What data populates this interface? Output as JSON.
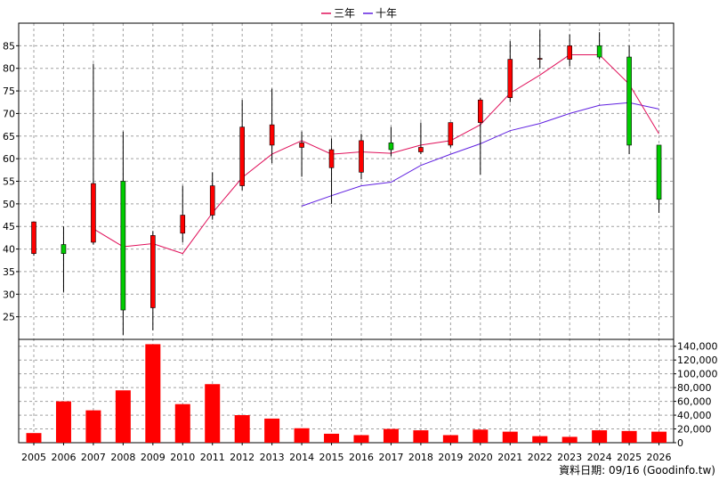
{
  "chart_data": {
    "type": "candlestick",
    "years": [
      "2005",
      "2006",
      "2007",
      "2008",
      "2009",
      "2010",
      "2011",
      "2012",
      "2013",
      "2014",
      "2015",
      "2016",
      "2017",
      "2018",
      "2019",
      "2020",
      "2021",
      "2022",
      "2023",
      "2024",
      "2025",
      "2026"
    ],
    "ohlc": [
      {
        "year": "2005",
        "open": 39,
        "high": 46,
        "low": 38.5,
        "close": 46
      },
      {
        "year": "2006",
        "open": 41,
        "high": 45,
        "low": 30.5,
        "close": 39
      },
      {
        "year": "2007",
        "open": 41.5,
        "high": 81,
        "low": 41,
        "close": 54.5
      },
      {
        "year": "2008",
        "open": 55,
        "high": 66,
        "low": 21,
        "close": 26.5
      },
      {
        "year": "2009",
        "open": 27,
        "high": 44,
        "low": 22,
        "close": 43
      },
      {
        "year": "2010",
        "open": 43.5,
        "high": 54,
        "low": 41.5,
        "close": 47.5
      },
      {
        "year": "2011",
        "open": 47.5,
        "high": 57,
        "low": 46.5,
        "close": 54
      },
      {
        "year": "2012",
        "open": 54,
        "high": 73,
        "low": 53,
        "close": 67
      },
      {
        "year": "2013",
        "open": 63,
        "high": 75.5,
        "low": 59,
        "close": 67.5
      },
      {
        "year": "2014",
        "open": 62.5,
        "high": 66,
        "low": 56,
        "close": 63.5
      },
      {
        "year": "2015",
        "open": 58,
        "high": 64.5,
        "low": 50,
        "close": 62
      },
      {
        "year": "2016",
        "open": 57,
        "high": 65.5,
        "low": 55.5,
        "close": 64
      },
      {
        "year": "2017",
        "open": 63.5,
        "high": 67,
        "low": 60.5,
        "close": 62
      },
      {
        "year": "2018",
        "open": 61.5,
        "high": 68,
        "low": 61,
        "close": 62.5
      },
      {
        "year": "2019",
        "open": 63,
        "high": 68,
        "low": 62.5,
        "close": 68
      },
      {
        "year": "2020",
        "open": 68,
        "high": 73.5,
        "low": 56.5,
        "close": 73
      },
      {
        "year": "2021",
        "open": 73.5,
        "high": 86,
        "low": 72.5,
        "close": 82
      },
      {
        "year": "2022",
        "open": 82,
        "high": 88.5,
        "low": 80,
        "close": 82.2
      },
      {
        "year": "2023",
        "open": 82,
        "high": 87.5,
        "low": 80.5,
        "close": 85
      },
      {
        "year": "2024",
        "open": 85,
        "high": 88,
        "low": 82,
        "close": 82.5
      },
      {
        "year": "2025",
        "open": 82.5,
        "high": 85,
        "low": 61,
        "close": 63
      },
      {
        "year": "2026",
        "open": 63,
        "high": 63,
        "low": 48,
        "close": 51
      }
    ],
    "ma3": [
      null,
      null,
      44.5,
      40.5,
      41.2,
      39,
      48,
      55.8,
      61,
      64,
      61,
      61.5,
      61.2,
      63,
      64,
      67.5,
      74.5,
      78.5,
      83,
      83,
      76.5,
      65.5
    ],
    "ma10": [
      null,
      null,
      null,
      null,
      null,
      null,
      null,
      null,
      null,
      49.5,
      51.8,
      54,
      54.8,
      58.5,
      61,
      63.3,
      66.2,
      67.8,
      70,
      71.8,
      72.4,
      71
    ],
    "volume": [
      14000,
      60000,
      47000,
      76000,
      143000,
      56000,
      85000,
      40000,
      35000,
      21000,
      13000,
      11000,
      20000,
      18000,
      11000,
      19000,
      16000,
      9500,
      8500,
      18000,
      17000,
      16000
    ],
    "price_ylim": [
      20,
      90
    ],
    "price_ticks": [
      "25",
      "30",
      "35",
      "40",
      "45",
      "50",
      "55",
      "60",
      "65",
      "70",
      "75",
      "80",
      "85"
    ],
    "volume_ylim": [
      0,
      150000
    ],
    "volume_ticks": [
      "0",
      "20,000",
      "40,000",
      "60,000",
      "80,000",
      "100,000",
      "120,000",
      "140,000"
    ],
    "legend": [
      {
        "label": "三年",
        "color": "#e0105a"
      },
      {
        "label": "十年",
        "color": "#6020e0"
      }
    ],
    "colors": {
      "up": "#ff0000",
      "down": "#00cc00",
      "volume": "#ff0000",
      "grid": "#a0a0a0",
      "ma3": "#e0105a",
      "ma10": "#6020e0"
    },
    "grid": true,
    "footer": "資料日期: 09/16  (Goodinfo.tw)"
  }
}
